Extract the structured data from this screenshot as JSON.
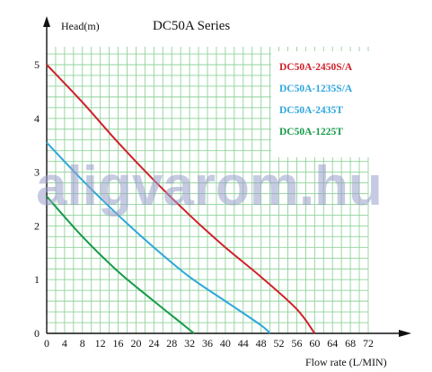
{
  "chart_data": {
    "type": "line",
    "title": "DC50A Series",
    "ylabel": "Head(m)",
    "xlabel": "Flow rate (L/MIN)",
    "xlim": [
      0,
      72
    ],
    "ylim": [
      0,
      5
    ],
    "x_ticks": [
      "0",
      "4",
      "8",
      "12",
      "16",
      "20",
      "24",
      "28",
      "32",
      "36",
      "40",
      "44",
      "48",
      "52",
      "56",
      "60",
      "64",
      "68",
      "72"
    ],
    "y_ticks": [
      "0",
      "1",
      "2",
      "3",
      "4",
      "5"
    ],
    "grid": true,
    "grid_color": "#8fd39a",
    "legend_position": "top-right",
    "watermark": "aligvarom.hu",
    "series": [
      {
        "name": "DC50A-2450S/A",
        "color": "#d0202a",
        "points": [
          [
            0,
            5.0
          ],
          [
            8,
            4.3
          ],
          [
            16,
            3.55
          ],
          [
            24,
            2.85
          ],
          [
            32,
            2.2
          ],
          [
            40,
            1.6
          ],
          [
            48,
            1.05
          ],
          [
            56,
            0.45
          ],
          [
            60,
            0.0
          ]
        ]
      },
      {
        "name": "DC50A-1235S/A",
        "color": "#2ea6dd",
        "points": [
          [
            0,
            3.55
          ],
          [
            8,
            2.85
          ],
          [
            16,
            2.2
          ],
          [
            24,
            1.6
          ],
          [
            32,
            1.05
          ],
          [
            40,
            0.6
          ],
          [
            48,
            0.15
          ],
          [
            50,
            0.0
          ]
        ]
      },
      {
        "name": "DC50A-2435T",
        "color": "#2ea6dd",
        "points": []
      },
      {
        "name": "DC50A-1225T",
        "color": "#179a4a",
        "points": [
          [
            0,
            2.55
          ],
          [
            8,
            1.8
          ],
          [
            16,
            1.15
          ],
          [
            24,
            0.6
          ],
          [
            30,
            0.2
          ],
          [
            33,
            0.0
          ]
        ]
      }
    ]
  }
}
